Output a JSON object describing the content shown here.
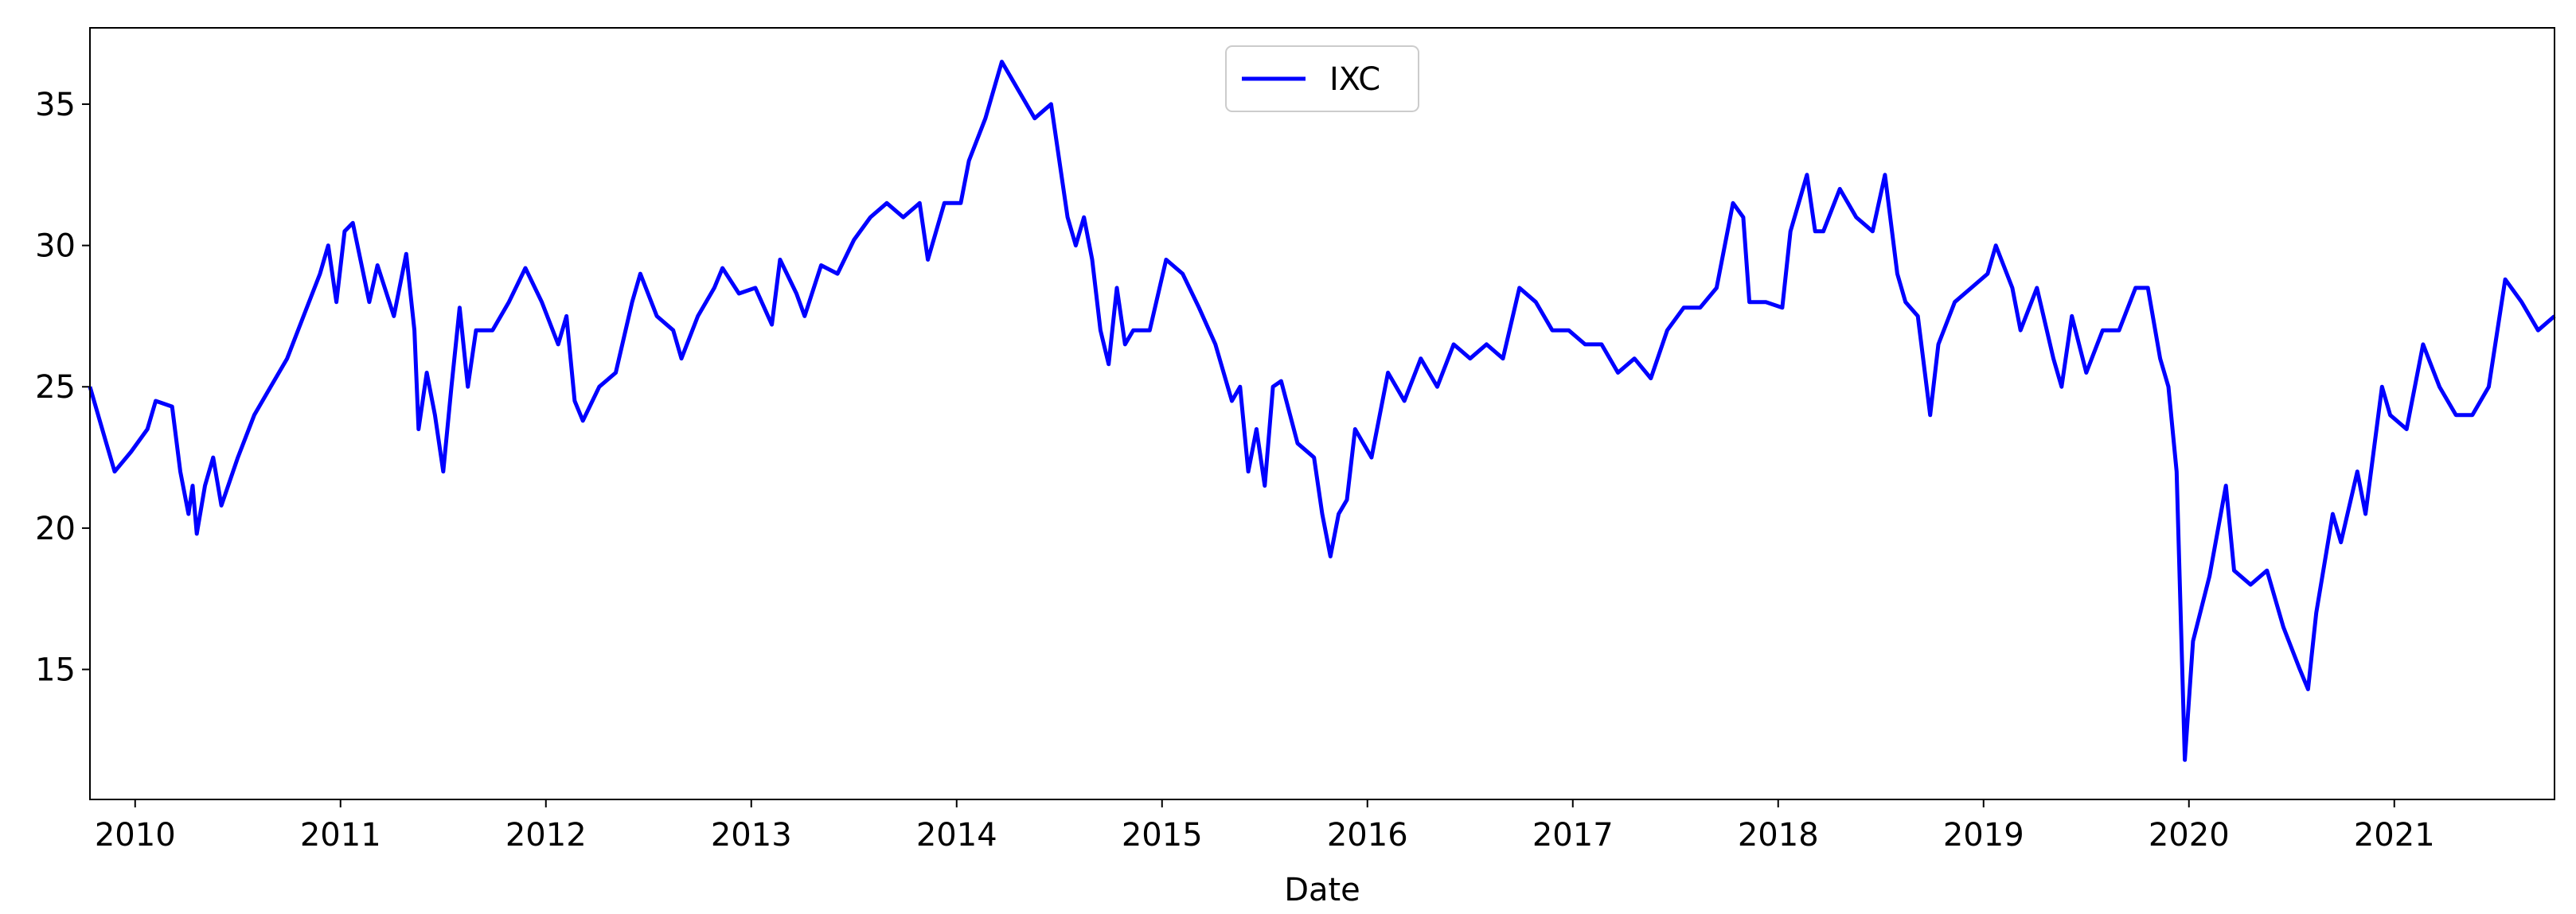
{
  "chart_data": {
    "type": "line",
    "xlabel": "Date",
    "x": [
      2009.78,
      2009.86,
      2009.9,
      2009.98,
      2010.06,
      2010.1,
      2010.18,
      2010.22,
      2010.26,
      2010.28,
      2010.3,
      2010.34,
      2010.38,
      2010.42,
      2010.5,
      2010.58,
      2010.66,
      2010.74,
      2010.82,
      2010.9,
      2010.94,
      2010.98,
      2011.02,
      2011.06,
      2011.14,
      2011.18,
      2011.26,
      2011.32,
      2011.36,
      2011.38,
      2011.42,
      2011.46,
      2011.5,
      2011.54,
      2011.58,
      2011.62,
      2011.66,
      2011.74,
      2011.82,
      2011.9,
      2011.98,
      2012.06,
      2012.1,
      2012.14,
      2012.18,
      2012.26,
      2012.34,
      2012.42,
      2012.46,
      2012.54,
      2012.62,
      2012.66,
      2012.74,
      2012.82,
      2012.86,
      2012.94,
      2013.02,
      2013.1,
      2013.14,
      2013.22,
      2013.26,
      2013.34,
      2013.42,
      2013.5,
      2013.58,
      2013.66,
      2013.74,
      2013.82,
      2013.86,
      2013.94,
      2014.02,
      2014.06,
      2014.14,
      2014.22,
      2014.3,
      2014.38,
      2014.46,
      2014.54,
      2014.58,
      2014.62,
      2014.66,
      2014.7,
      2014.74,
      2014.78,
      2014.82,
      2014.86,
      2014.94,
      2015.02,
      2015.1,
      2015.18,
      2015.26,
      2015.34,
      2015.38,
      2015.42,
      2015.46,
      2015.5,
      2015.54,
      2015.58,
      2015.66,
      2015.74,
      2015.78,
      2015.82,
      2015.86,
      2015.9,
      2015.94,
      2016.02,
      2016.1,
      2016.18,
      2016.26,
      2016.34,
      2016.42,
      2016.5,
      2016.58,
      2016.66,
      2016.74,
      2016.82,
      2016.9,
      2016.98,
      2017.06,
      2017.14,
      2017.22,
      2017.3,
      2017.38,
      2017.46,
      2017.54,
      2017.62,
      2017.7,
      2017.78,
      2017.83,
      2017.86,
      2017.94,
      2018.02,
      2018.06,
      2018.14,
      2018.18,
      2018.22,
      2018.3,
      2018.38,
      2018.46,
      2018.52,
      2018.58,
      2018.62,
      2018.68,
      2018.74,
      2018.78,
      2018.86,
      2018.94,
      2019.02,
      2019.06,
      2019.14,
      2019.18,
      2019.26,
      2019.34,
      2019.38,
      2019.43,
      2019.5,
      2019.58,
      2019.66,
      2019.74,
      2019.8,
      2019.86,
      2019.9,
      2019.94,
      2019.98,
      2020.02,
      2020.1,
      2020.18,
      2020.22,
      2020.3,
      2020.38,
      2020.46,
      2020.54,
      2020.58,
      2020.62,
      2020.7,
      2020.74,
      2020.82,
      2020.86,
      2020.94,
      2020.98,
      2021.06,
      2021.14,
      2021.22,
      2021.3,
      2021.38,
      2021.46,
      2021.54,
      2021.62,
      2021.7,
      2021.78
    ],
    "series": [
      {
        "name": "IXC",
        "color": "#0000ff",
        "values": [
          25.0,
          23.0,
          22.0,
          22.7,
          23.5,
          24.5,
          24.3,
          22.0,
          20.5,
          21.5,
          19.8,
          21.5,
          22.5,
          20.8,
          22.5,
          24.0,
          25.0,
          26.0,
          27.5,
          29.0,
          30.0,
          28.0,
          30.5,
          30.8,
          28.0,
          29.3,
          27.5,
          29.7,
          27.0,
          23.5,
          25.5,
          24.0,
          22.0,
          25.0,
          27.8,
          25.0,
          27.0,
          27.0,
          28.0,
          29.2,
          28.0,
          26.5,
          27.5,
          24.5,
          23.8,
          25.0,
          25.5,
          28.0,
          29.0,
          27.5,
          27.0,
          26.0,
          27.5,
          28.5,
          29.2,
          28.3,
          28.5,
          27.2,
          29.5,
          28.3,
          27.5,
          29.3,
          29.0,
          30.2,
          31.0,
          31.5,
          31.0,
          31.5,
          29.5,
          31.5,
          31.5,
          33.0,
          34.5,
          36.5,
          35.5,
          34.5,
          35.0,
          31.0,
          30.0,
          31.0,
          29.5,
          27.0,
          25.8,
          28.5,
          26.5,
          27.0,
          27.0,
          29.5,
          29.0,
          27.8,
          26.5,
          24.5,
          25.0,
          22.0,
          23.5,
          21.5,
          25.0,
          25.2,
          23.0,
          22.5,
          20.5,
          19.0,
          20.5,
          21.0,
          23.5,
          22.5,
          25.5,
          24.5,
          26.0,
          25.0,
          26.5,
          26.0,
          26.5,
          26.0,
          28.5,
          28.0,
          27.0,
          27.0,
          26.5,
          26.5,
          25.5,
          26.0,
          25.3,
          27.0,
          27.8,
          27.8,
          28.5,
          31.5,
          31.0,
          28.0,
          28.0,
          27.8,
          30.5,
          32.5,
          30.5,
          30.5,
          32.0,
          31.0,
          30.5,
          32.5,
          29.0,
          28.0,
          27.5,
          24.0,
          26.5,
          28.0,
          28.5,
          29.0,
          30.0,
          28.5,
          27.0,
          28.5,
          26.0,
          25.0,
          27.5,
          25.5,
          27.0,
          27.0,
          28.5,
          28.5,
          26.0,
          25.0,
          22.0,
          11.8,
          16.0,
          18.3,
          21.5,
          18.5,
          18.0,
          18.5,
          16.5,
          15.0,
          14.3,
          17.0,
          20.5,
          19.5,
          22.0,
          20.5,
          25.0,
          24.0,
          23.5,
          26.5,
          25.0,
          24.0,
          24.0,
          25.0,
          28.8,
          28.0,
          27.0,
          27.5
        ]
      }
    ],
    "xlim": [
      2009.78,
      2021.78
    ],
    "xticks": [
      2010,
      2011,
      2012,
      2013,
      2014,
      2015,
      2016,
      2017,
      2018,
      2019,
      2020,
      2021
    ],
    "ylim": [
      10.4,
      37.7
    ],
    "yticks": [
      15,
      20,
      25,
      30,
      35
    ],
    "grid": false,
    "legend": "upper center"
  }
}
